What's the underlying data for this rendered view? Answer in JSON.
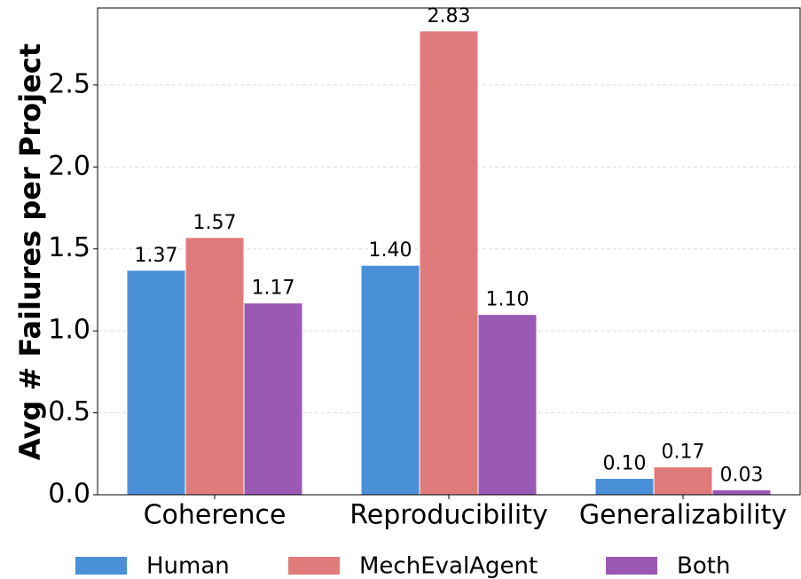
{
  "chart_data": {
    "type": "bar",
    "y_label": "Avg # Failures per Project",
    "categories": [
      "Coherence",
      "Reproducibility",
      "Generalizability"
    ],
    "series": [
      {
        "name": "Human",
        "color": "#4a90d9",
        "values": [
          1.37,
          1.4,
          0.1
        ],
        "value_labels": [
          "1.37",
          "1.40",
          "0.10"
        ]
      },
      {
        "name": "MechEvalAgent",
        "color": "#e07b7b",
        "values": [
          1.57,
          2.83,
          0.17
        ],
        "value_labels": [
          "1.57",
          "2.83",
          "0.17"
        ]
      },
      {
        "name": "Both",
        "color": "#9b59b6",
        "values": [
          1.17,
          1.1,
          0.03
        ],
        "value_labels": [
          "1.17",
          "1.10",
          "0.03"
        ]
      }
    ],
    "ylim": [
      0,
      2.97
    ],
    "yticks": [
      {
        "value": 0,
        "label": "0.0"
      },
      0.5,
      {
        "value": 1,
        "label": "1.0"
      },
      1.5,
      {
        "value": 2,
        "label": "2.0"
      },
      2.5
    ],
    "grid": true,
    "legend": "bottom"
  }
}
